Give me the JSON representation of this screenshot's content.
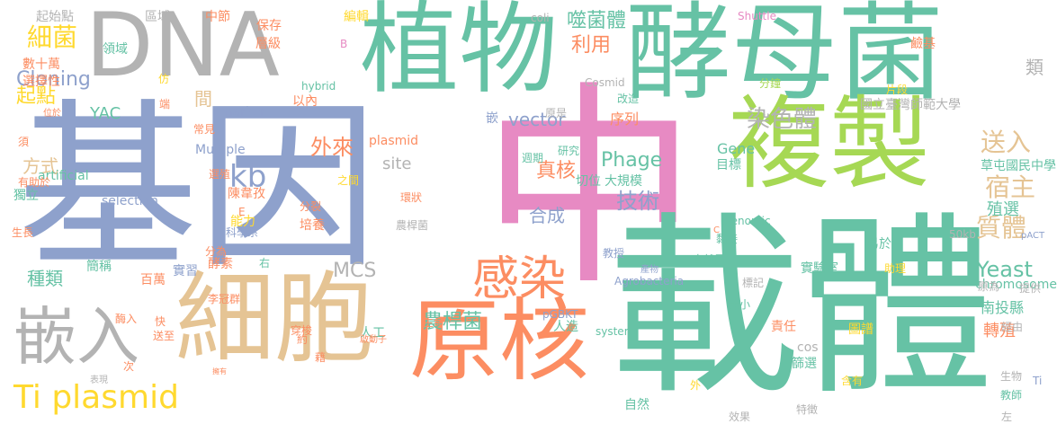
{
  "colors": {
    "blue": "#8ea1cc",
    "pink": "#e78ac3",
    "teal": "#66c2a5",
    "orange": "#fc8d62",
    "tan": "#e5c494",
    "gray": "#b3b3b3",
    "green": "#a6d854",
    "yellow": "#ffd92f"
  },
  "words": [
    "基因",
    "中",
    "載體",
    "酵母菌",
    "DNA",
    "植物",
    "細胞",
    "複製",
    "原核",
    "嵌入",
    "感染",
    "染色體",
    "Ti plasmid",
    "宿主",
    "送入",
    "質體",
    "kb",
    "外來",
    "Yeast",
    "技術",
    "噬菌體",
    "利用",
    "細菌",
    "Cloning",
    "起點",
    "vector",
    "Phage",
    "真核",
    "合成",
    "MCS",
    "轉殖",
    "南投縣",
    "YAC",
    "類",
    "site",
    "種類",
    "農桿菌",
    "方式",
    "殖選",
    "序列",
    "間",
    "人工",
    "切位",
    "大規模",
    "週期",
    "研究",
    "plasmid",
    "Gene",
    "chromosome",
    "目標",
    "國立臺灣師範大學",
    "草屯國民中學",
    "農桿菌",
    "數十萬",
    "選擇性",
    "領域",
    "起始點",
    "區域",
    "保存",
    "層級",
    "中節",
    "編輯",
    "coli",
    "Shuttle",
    "鹼基",
    "片段",
    "分鐘",
    "改造",
    "原是",
    "嵌",
    "Cosmid",
    "hybrid",
    "以內",
    "marker",
    "artificial",
    "selection",
    "陳韋孜",
    "能力",
    "酵素",
    "實習",
    "百萬",
    "簡稱",
    "有助於",
    "獨立",
    "生長",
    "須",
    "位於",
    "李冠群",
    "分為",
    "右",
    "科學系",
    "分裂",
    "培養",
    "之間",
    "環狀",
    "Multiple",
    "選殖",
    "常見",
    "端",
    "仿",
    "B",
    "E",
    "Ti",
    "pACT",
    "50kb",
    "genomic",
    "黏接",
    "C",
    "實驗室",
    "易於",
    "助理",
    "標記",
    "原為",
    "提供",
    "經由",
    "生物",
    "教師",
    "左",
    "效果",
    "特徵",
    "含有",
    "篩選",
    "cos",
    "圖譜",
    "責任",
    "大小",
    "自然界",
    "教授",
    "產物",
    "Agrobacteria",
    "pGBKT",
    "system",
    "人造",
    "生命",
    "自然",
    "外",
    "穿梭",
    "約",
    "酶入",
    "快",
    "送至",
    "次",
    "表現",
    "藉",
    "擁有",
    "啟動子",
    "雙雜交",
    "上游",
    "科學家",
    "系統",
    "兩",
    "A"
  ]
}
